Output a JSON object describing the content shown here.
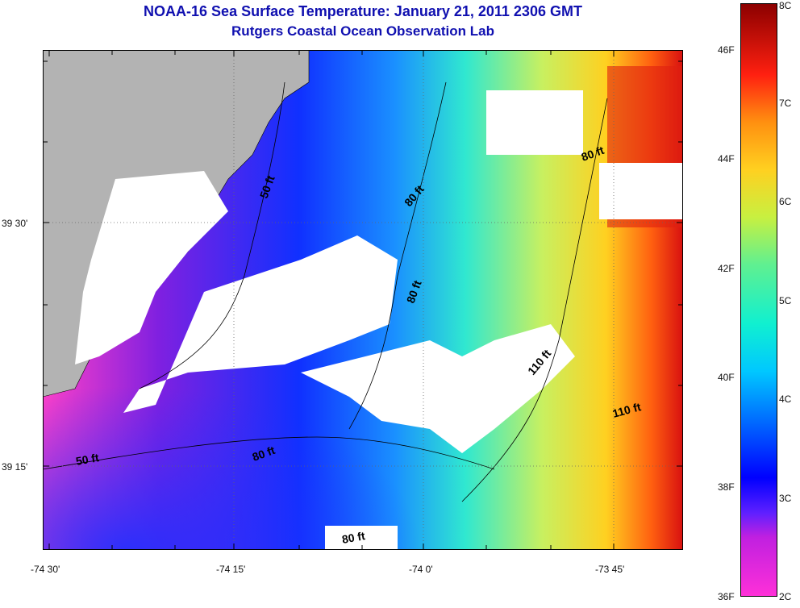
{
  "title": "NOAA-16 Sea Surface Temperature:  January 21, 2011 2306 GMT",
  "subtitle": "Rutgers Coastal Ocean Observation Lab",
  "map": {
    "x_ticks": [
      "-74 30'",
      "-74 15'",
      "-74 0'",
      "-73 45'"
    ],
    "y_ticks": [
      "39 30'",
      "39 15'"
    ],
    "contour_labels": [
      "50 ft",
      "80 ft",
      "80 ft",
      "80 ft",
      "80 ft",
      "110 ft",
      "110 ft",
      "50 ft",
      "80 ft"
    ]
  },
  "colorbar": {
    "fahrenheit_labels": [
      "46F",
      "44F",
      "42F",
      "40F",
      "38F",
      "36F"
    ],
    "celsius_labels": [
      "8C",
      "7C",
      "6C",
      "5C",
      "4C",
      "3C",
      "2C"
    ]
  }
}
